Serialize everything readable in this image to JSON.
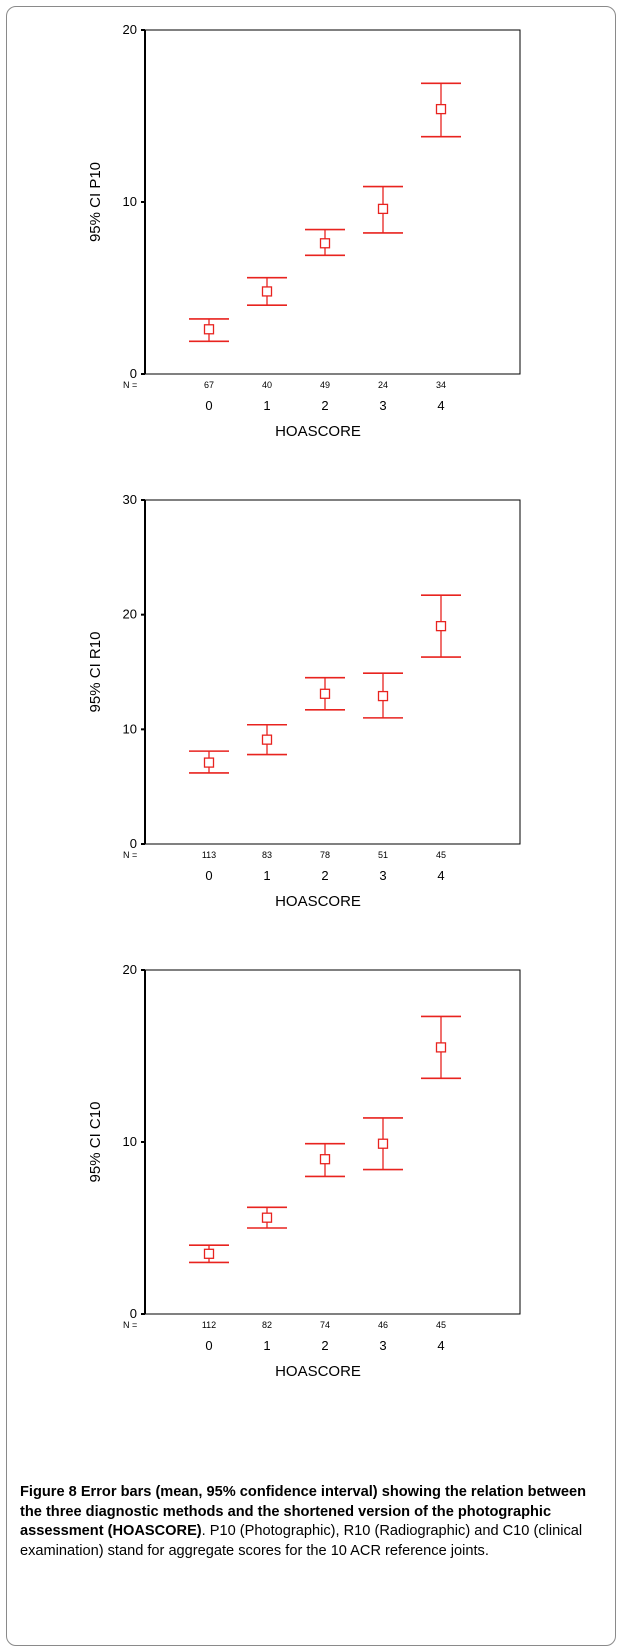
{
  "chart_data": [
    {
      "type": "errorbar",
      "ylabel": "95% CI P10",
      "xlabel": "HOASCORE",
      "ylim": [
        0,
        20
      ],
      "yticks": [
        "0",
        "10",
        "20"
      ],
      "n_label": "N =",
      "categories": [
        "0",
        "1",
        "2",
        "3",
        "4"
      ],
      "n": [
        "67",
        "40",
        "49",
        "24",
        "34"
      ],
      "mean": [
        2.6,
        4.8,
        7.6,
        9.6,
        15.4
      ],
      "lower": [
        1.9,
        4.0,
        6.9,
        8.2,
        13.8
      ],
      "upper": [
        3.2,
        5.6,
        8.4,
        10.9,
        16.9
      ],
      "color": "#e8231f"
    },
    {
      "type": "errorbar",
      "ylabel": "95% CI R10",
      "xlabel": "HOASCORE",
      "ylim": [
        0,
        30
      ],
      "yticks": [
        "0",
        "10",
        "20",
        "30"
      ],
      "n_label": "N =",
      "categories": [
        "0",
        "1",
        "2",
        "3",
        "4"
      ],
      "n": [
        "113",
        "83",
        "78",
        "51",
        "45"
      ],
      "mean": [
        7.1,
        9.1,
        13.1,
        12.9,
        19.0
      ],
      "lower": [
        6.2,
        7.8,
        11.7,
        11.0,
        16.3
      ],
      "upper": [
        8.1,
        10.4,
        14.5,
        14.9,
        21.7
      ],
      "color": "#e8231f"
    },
    {
      "type": "errorbar",
      "ylabel": "95% CI C10",
      "xlabel": "HOASCORE",
      "ylim": [
        0,
        20
      ],
      "yticks": [
        "0",
        "10",
        "20"
      ],
      "n_label": "N =",
      "categories": [
        "0",
        "1",
        "2",
        "3",
        "4"
      ],
      "n": [
        "112",
        "82",
        "74",
        "46",
        "45"
      ],
      "mean": [
        3.5,
        5.6,
        9.0,
        9.9,
        15.5
      ],
      "lower": [
        3.0,
        5.0,
        8.0,
        8.4,
        13.7
      ],
      "upper": [
        4.0,
        6.2,
        9.9,
        11.4,
        17.3
      ],
      "color": "#e8231f"
    }
  ],
  "caption": {
    "label": "Figure 8",
    "bold_text": "Error bars (mean, 95% confidence interval) showing the relation between the three diagnostic methods and the shortened version of the photographic assessment (HOASCORE)",
    "text": ". P10 (Photographic), R10 (Radiographic) and C10 (clinical examination) stand for aggregate scores for the 10 ACR reference joints."
  }
}
